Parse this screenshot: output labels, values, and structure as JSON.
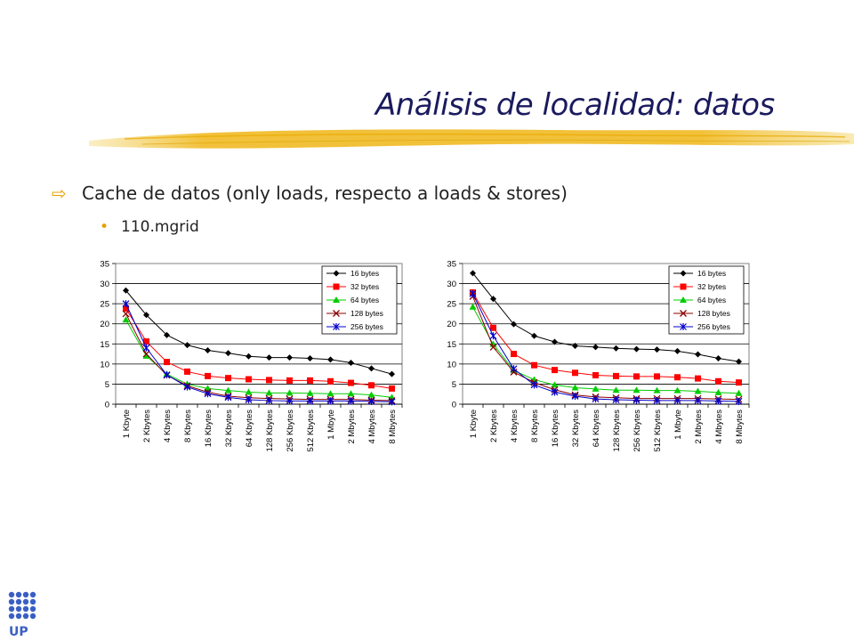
{
  "slide": {
    "title": "Análisis de localidad: datos",
    "bullet1": "Cache de datos (only loads, respecto a loads & stores)",
    "bullet2": "110.mgrid",
    "logo_text": "UP"
  },
  "colors": {
    "title": "#1a1a5e",
    "accent": "#e8a000",
    "s16": "#000000",
    "s32": "#ff0000",
    "s64": "#00cc00",
    "s128": "#8b0000",
    "s256": "#0000cc"
  },
  "chart_data": [
    {
      "type": "line",
      "title": "",
      "xlabel": "",
      "ylabel": "",
      "ylim": [
        0,
        35
      ],
      "yticks": [
        0,
        5,
        10,
        15,
        20,
        25,
        30,
        35
      ],
      "grid": true,
      "legend": "top-right",
      "categories": [
        "1 Kbyte",
        "2 Kbytes",
        "4 Kbytes",
        "8 Kbytes",
        "16 Kbytes",
        "32 Kbytes",
        "64 Kbytes",
        "128 Kbytes",
        "256 Kbytes",
        "512 Kbytes",
        "1 Mbyte",
        "2 Mbytes",
        "4 Mbytes",
        "8 Mbytes"
      ],
      "series": [
        {
          "name": "16 bytes",
          "values": [
            28.3,
            22.2,
            17.2,
            14.7,
            13.4,
            12.7,
            11.9,
            11.6,
            11.6,
            11.4,
            11.1,
            10.3,
            8.9,
            7.5
          ]
        },
        {
          "name": "32 bytes",
          "values": [
            23.8,
            15.6,
            10.5,
            8.1,
            7.0,
            6.5,
            6.2,
            6.0,
            5.9,
            5.9,
            5.7,
            5.3,
            4.7,
            3.9
          ]
        },
        {
          "name": "64 bytes",
          "values": [
            21.0,
            12.0,
            7.5,
            5.0,
            3.9,
            3.4,
            3.0,
            2.8,
            2.8,
            2.7,
            2.6,
            2.6,
            2.3,
            1.7
          ]
        },
        {
          "name": "128 bytes",
          "values": [
            22.5,
            12.5,
            7.2,
            4.6,
            3.0,
            2.0,
            1.6,
            1.4,
            1.3,
            1.2,
            1.2,
            1.2,
            1.0,
            0.9
          ]
        },
        {
          "name": "256 bytes",
          "values": [
            25.0,
            14.0,
            7.3,
            4.3,
            2.6,
            1.7,
            1.1,
            0.9,
            0.8,
            0.8,
            0.8,
            0.8,
            0.7,
            0.6
          ]
        }
      ]
    },
    {
      "type": "line",
      "title": "",
      "xlabel": "",
      "ylabel": "",
      "ylim": [
        0,
        35
      ],
      "yticks": [
        0,
        5,
        10,
        15,
        20,
        25,
        30,
        35
      ],
      "grid": true,
      "legend": "top-right",
      "categories": [
        "1 Kbyte",
        "2 Kbytes",
        "4 Kbytes",
        "8 Kbytes",
        "16 Kbytes",
        "32 Kbytes",
        "64 Kbytes",
        "128 Kbytes",
        "256 Kbytes",
        "512 Kbytes",
        "1 Mbyte",
        "2 Mbytes",
        "4 Mbytes",
        "8 Mbytes"
      ],
      "series": [
        {
          "name": "16 bytes",
          "values": [
            32.6,
            26.2,
            19.9,
            17.0,
            15.5,
            14.5,
            14.2,
            13.9,
            13.7,
            13.6,
            13.2,
            12.4,
            11.4,
            10.6
          ]
        },
        {
          "name": "32 bytes",
          "values": [
            27.8,
            19.0,
            12.5,
            9.7,
            8.5,
            7.8,
            7.2,
            7.0,
            6.9,
            6.9,
            6.7,
            6.4,
            5.7,
            5.4
          ]
        },
        {
          "name": "64 bytes",
          "values": [
            24.2,
            14.9,
            8.4,
            6.1,
            4.8,
            4.1,
            3.8,
            3.5,
            3.5,
            3.4,
            3.4,
            3.2,
            2.9,
            2.7
          ]
        },
        {
          "name": "128 bytes",
          "values": [
            26.8,
            14.2,
            8.0,
            5.4,
            3.6,
            2.3,
            1.8,
            1.6,
            1.4,
            1.4,
            1.4,
            1.4,
            1.3,
            1.2
          ]
        },
        {
          "name": "256 bytes",
          "values": [
            27.5,
            17.0,
            8.8,
            4.8,
            3.0,
            2.0,
            1.3,
            1.1,
            1.0,
            0.9,
            0.9,
            0.9,
            0.8,
            0.7
          ]
        }
      ]
    }
  ]
}
